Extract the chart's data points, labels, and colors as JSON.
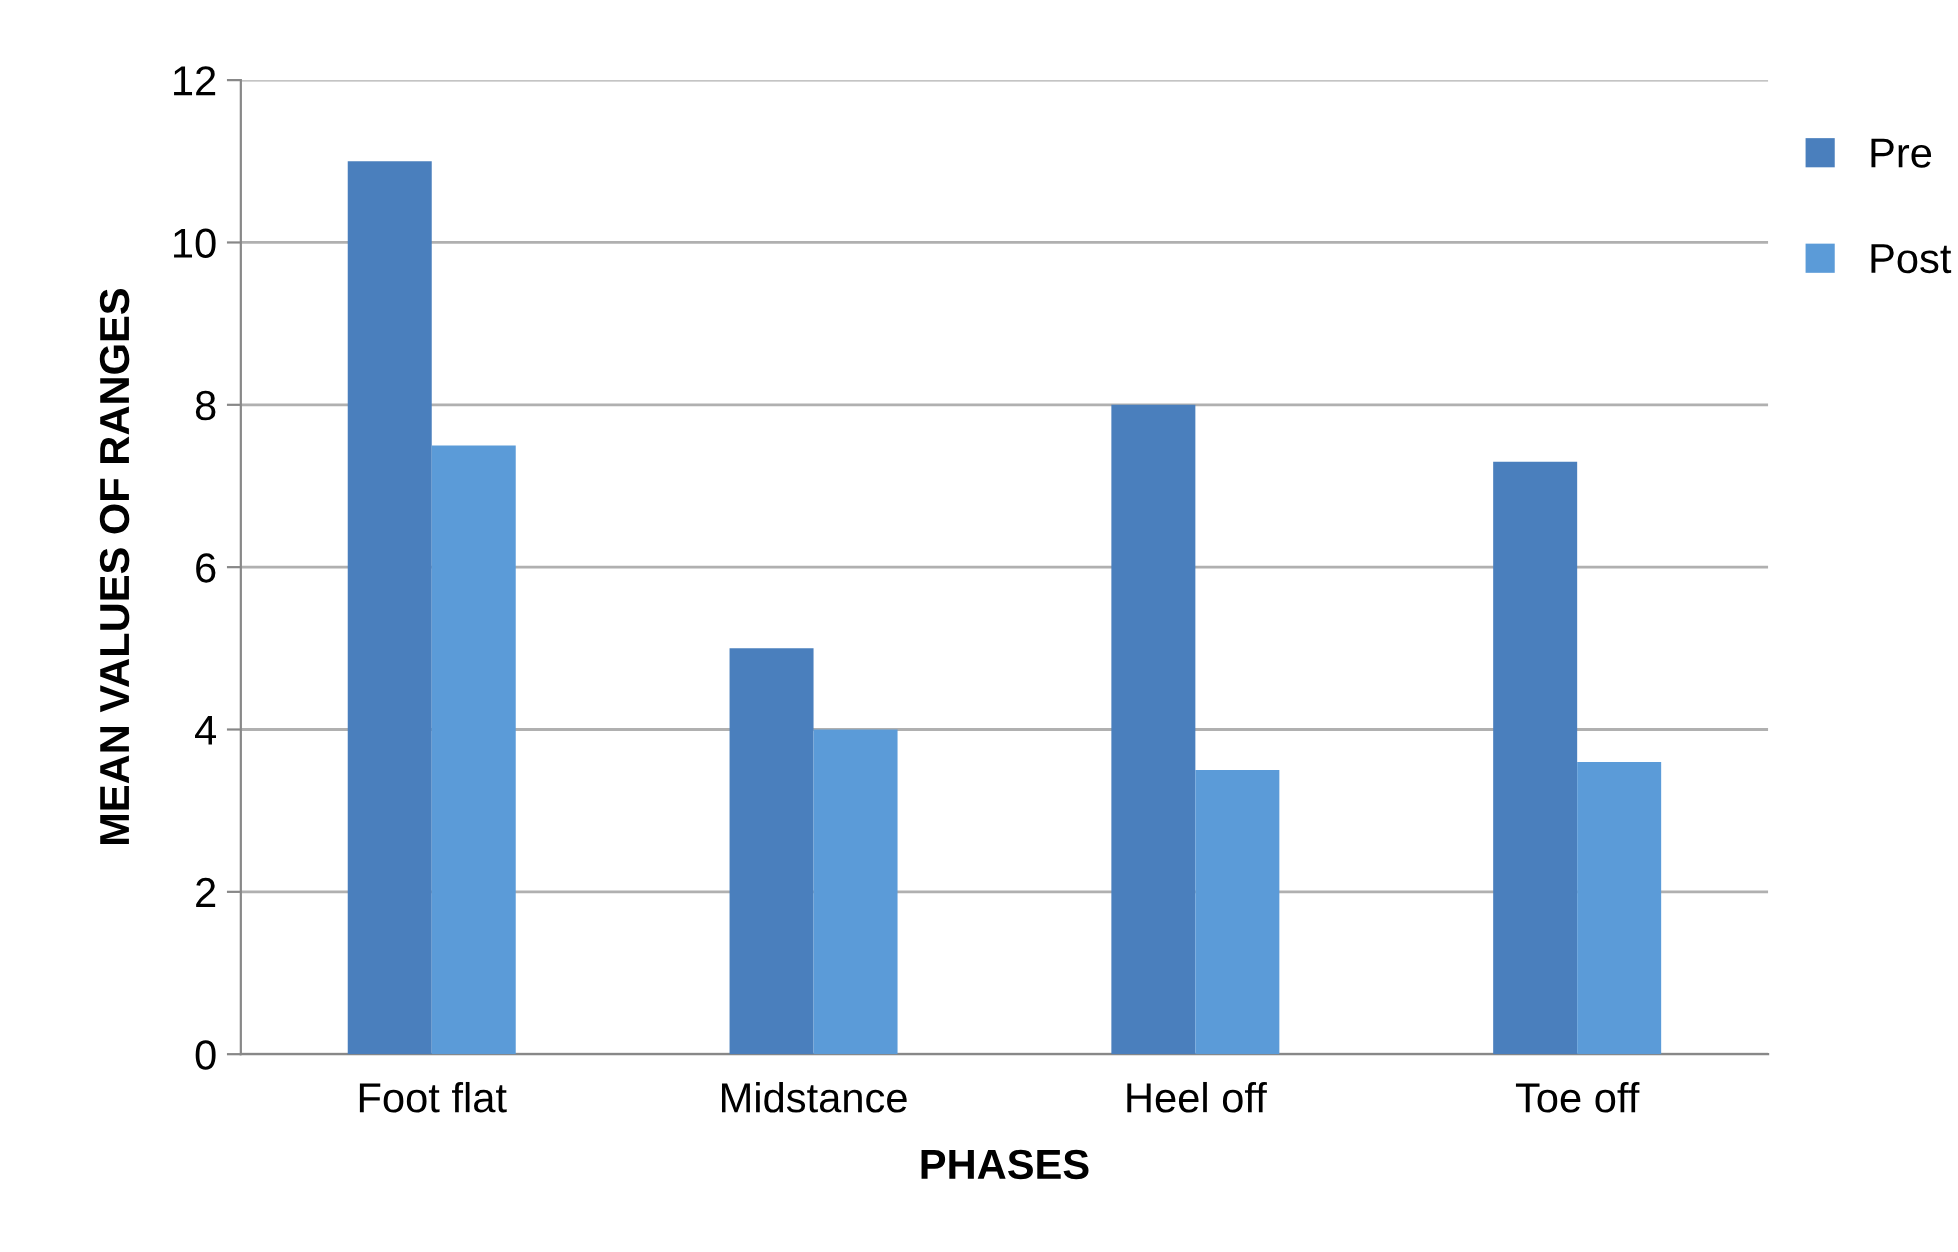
{
  "chart_data": {
    "type": "bar",
    "xlabel": "PHASES",
    "ylabel": "MEAN VALUES OF RANGES",
    "categories": [
      "Foot flat",
      "Midstance",
      "Heel off",
      "Toe off"
    ],
    "series": [
      {
        "name": "Pre",
        "color": "#4a7fbd",
        "values": [
          11,
          5,
          8,
          7.3
        ]
      },
      {
        "name": "Post",
        "color": "#5b9bd8",
        "values": [
          7.5,
          4,
          3.5,
          3.6
        ]
      }
    ],
    "ylim": [
      0,
      12
    ],
    "yticks": [
      0,
      2,
      4,
      6,
      8,
      10,
      12
    ],
    "grid": "y",
    "legend": "right"
  }
}
